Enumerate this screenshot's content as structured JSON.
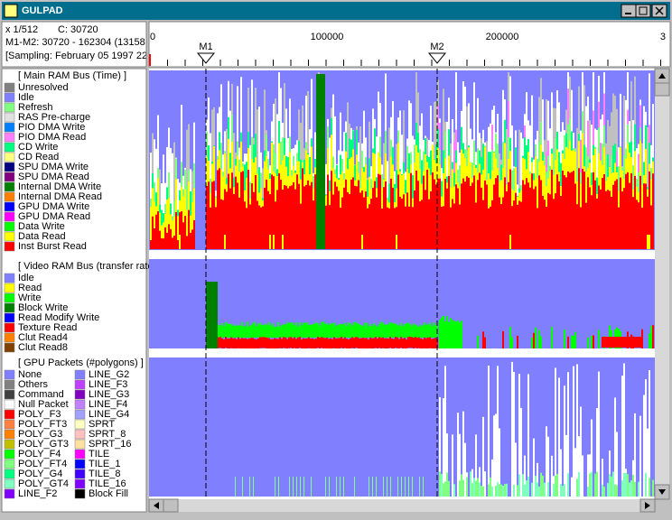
{
  "window": {
    "title": "GULPAD"
  },
  "info": {
    "scale": "x 1/512",
    "cursor": "C: 30720",
    "range": "M1-M2: 30720 - 162304 (13158",
    "sampling": "[Sampling: February 05 1997 22"
  },
  "ruler": {
    "labels": [
      "0",
      "100000",
      "200000",
      "3"
    ],
    "markers": [
      "M1",
      "M2"
    ]
  },
  "legend": {
    "sections": [
      {
        "title": "[ Main RAM Bus (Time) ]",
        "items": [
          {
            "label": "Unresolved",
            "color": "#808080"
          },
          {
            "label": "Idle",
            "color": "#8080ff"
          },
          {
            "label": "Refresh",
            "color": "#80ff80"
          },
          {
            "label": "RAS Pre-charge",
            "color": "#e0e0e0"
          },
          {
            "label": "PIO DMA Write",
            "color": "#0080ff"
          },
          {
            "label": "PIO DMA Read",
            "color": "#ff80ff"
          },
          {
            "label": "CD Write",
            "color": "#00ff80"
          },
          {
            "label": "CD Read",
            "color": "#ffff80"
          },
          {
            "label": "SPU DMA Write",
            "color": "#000080"
          },
          {
            "label": "SPU DMA Read",
            "color": "#800080"
          },
          {
            "label": "Internal DMA Write",
            "color": "#008000"
          },
          {
            "label": "Internal DMA Read",
            "color": "#ff8000"
          },
          {
            "label": "GPU DMA Write",
            "color": "#0000ff"
          },
          {
            "label": "GPU DMA Read",
            "color": "#ff00ff"
          },
          {
            "label": "Data Write",
            "color": "#00ff00"
          },
          {
            "label": "Data Read",
            "color": "#ffff00"
          },
          {
            "label": "Inst Burst Read",
            "color": "#ff0000"
          }
        ]
      },
      {
        "title": "[ Video RAM Bus (transfer rate",
        "items": [
          {
            "label": "Idle",
            "color": "#8080ff"
          },
          {
            "label": "Read",
            "color": "#ffff00"
          },
          {
            "label": "Write",
            "color": "#00ff00"
          },
          {
            "label": "Block Write",
            "color": "#008000"
          },
          {
            "label": "Read Modify Write",
            "color": "#0000ff"
          },
          {
            "label": "Texture Read",
            "color": "#ff0000"
          },
          {
            "label": "Clut Read4",
            "color": "#ff8000"
          },
          {
            "label": "Clut Read8",
            "color": "#804000"
          }
        ]
      },
      {
        "title": "[ GPU Packets (#polygons) ]",
        "items": [
          {
            "label": "None",
            "color": "#8080ff"
          },
          {
            "label": "Others",
            "color": "#808080"
          },
          {
            "label": "Command",
            "color": "#404040"
          },
          {
            "label": "Null Packet",
            "color": "#ffffff"
          },
          {
            "label": "POLY_F3",
            "color": "#ff0000"
          },
          {
            "label": "POLY_FT3",
            "color": "#ff8040"
          },
          {
            "label": "POLY_G3",
            "color": "#ff8000"
          },
          {
            "label": "POLY_GT3",
            "color": "#c0c000"
          },
          {
            "label": "POLY_F4",
            "color": "#00ff00"
          },
          {
            "label": "POLY_FT4",
            "color": "#80ff80"
          },
          {
            "label": "POLY_G4",
            "color": "#00ff80"
          },
          {
            "label": "POLY_GT4",
            "color": "#80ffc0"
          },
          {
            "label": "LINE_F2",
            "color": "#8000ff"
          },
          {
            "label": "LINE_G2",
            "color": "#8080ff"
          },
          {
            "label": "LINE_F3",
            "color": "#c040ff"
          },
          {
            "label": "LINE_G3",
            "color": "#8000c0"
          },
          {
            "label": "LINE_F4",
            "color": "#c080ff"
          },
          {
            "label": "LINE_G4",
            "color": "#a0a0ff"
          },
          {
            "label": "SPRT",
            "color": "#ffffc0"
          },
          {
            "label": "SPRT_8",
            "color": "#ffc0c0"
          },
          {
            "label": "SPRT_16",
            "color": "#ffe0a0"
          },
          {
            "label": "TILE",
            "color": "#ff00ff"
          },
          {
            "label": "TILE_1",
            "color": "#0000ff"
          },
          {
            "label": "TILE_8",
            "color": "#4000ff"
          },
          {
            "label": "TILE_16",
            "color": "#8000ff"
          },
          {
            "label": "Block Fill",
            "color": "#000000"
          }
        ]
      }
    ]
  }
}
